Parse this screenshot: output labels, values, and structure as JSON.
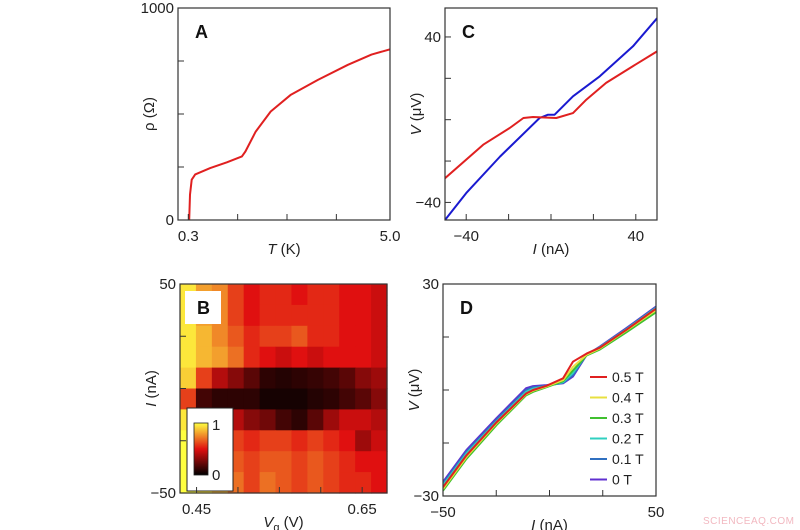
{
  "watermark": "SCIENCEAQ.COM",
  "chart_data": [
    {
      "panel": "A",
      "type": "line",
      "xlabel": {
        "var": "T",
        "unit": " (K)"
      },
      "ylabel": {
        "var": "ρ",
        "unit": " (Ω)"
      },
      "xlim": [
        0.06,
        5.0
      ],
      "ylim": [
        0,
        1000
      ],
      "xtick_labels": [
        {
          "v": 0.3,
          "t": "0.3"
        },
        {
          "v": 5.0,
          "t": "5.0"
        }
      ],
      "xticks_minor": [
        1.45,
        2.6,
        3.75
      ],
      "ytick_labels": [
        {
          "v": 0,
          "t": "0"
        },
        {
          "v": 1000,
          "t": "1000"
        }
      ],
      "yticks_minor": [
        250,
        500,
        750
      ],
      "series": [
        {
          "color": "#e02020",
          "x": [
            0.32,
            0.34,
            0.38,
            0.46,
            0.81,
            1.2,
            1.55,
            1.63,
            1.87,
            2.22,
            2.69,
            3.32,
            4.02,
            4.57,
            5.0
          ],
          "y": [
            0,
            120,
            190,
            215,
            245,
            272,
            300,
            323,
            417,
            512,
            591,
            661,
            732,
            780,
            805
          ]
        }
      ]
    },
    {
      "panel": "C",
      "type": "line",
      "xlabel": {
        "var": "I",
        "unit": " (nA)"
      },
      "ylabel": {
        "var": "V",
        "unit": " (μV)"
      },
      "xlim": [
        -50,
        50
      ],
      "ylim": [
        -48.5,
        54
      ],
      "xtick_labels": [
        {
          "v": -40,
          "t": "−40"
        },
        {
          "v": 40,
          "t": "40"
        }
      ],
      "xticks_minor": [
        -20,
        0,
        20
      ],
      "ytick_labels": [
        {
          "v": 40,
          "t": "40"
        },
        {
          "v": -40,
          "t": "−40"
        }
      ],
      "yticks_minor": [
        -20,
        0,
        20
      ],
      "series": [
        {
          "color": "#e02020",
          "x": [
            -50,
            -32,
            -19.5,
            -13,
            -8.5,
            2.5,
            10.4,
            16.7,
            26,
            38.7,
            50
          ],
          "y": [
            -28.3,
            -12.1,
            -4,
            0.8,
            1.3,
            0.8,
            3.2,
            9.7,
            17.8,
            25.9,
            33
          ]
        },
        {
          "color": "#1a1ad0",
          "x": [
            -50,
            -40,
            -24,
            -5.4,
            -1.4,
            1.7,
            10.4,
            23,
            38.7,
            50
          ],
          "y": [
            -48.5,
            -35.5,
            -17.8,
            0.8,
            2.4,
            2.4,
            11.3,
            21,
            35.5,
            49
          ]
        }
      ]
    },
    {
      "panel": "B",
      "type": "heatmap",
      "xlabel": {
        "var": "V",
        "sub": "g",
        "unit": " (V)"
      },
      "ylabel": {
        "var": "I",
        "unit": " (nA)"
      },
      "xlim": [
        0.43,
        0.68
      ],
      "ylim": [
        -50,
        50
      ],
      "xtick_labels": [
        {
          "v": 0.45,
          "t": "0.45"
        },
        {
          "v": 0.65,
          "t": "0.65"
        }
      ],
      "xticks_minor": [
        0.5,
        0.55,
        0.6
      ],
      "ytick_labels": [
        {
          "v": 50,
          "t": "50"
        },
        {
          "v": -50,
          "t": "−50"
        }
      ],
      "yticks_minor": [
        -25,
        0,
        25
      ],
      "x": [
        0.43,
        0.45,
        0.47,
        0.49,
        0.51,
        0.53,
        0.55,
        0.57,
        0.59,
        0.61,
        0.63,
        0.65,
        0.67
      ],
      "y": [
        45,
        35,
        25,
        15,
        5,
        -5,
        -15,
        -25,
        -35,
        -45
      ],
      "z": [
        [
          0.95,
          0.8,
          0.75,
          0.6,
          0.5,
          0.55,
          0.55,
          0.5,
          0.55,
          0.55,
          0.5,
          0.5,
          0.45
        ],
        [
          0.95,
          0.8,
          0.75,
          0.6,
          0.5,
          0.55,
          0.55,
          0.55,
          0.55,
          0.55,
          0.5,
          0.5,
          0.45
        ],
        [
          0.95,
          0.85,
          0.75,
          0.65,
          0.55,
          0.6,
          0.6,
          0.65,
          0.55,
          0.55,
          0.5,
          0.5,
          0.45
        ],
        [
          0.95,
          0.85,
          0.8,
          0.7,
          0.55,
          0.5,
          0.45,
          0.5,
          0.45,
          0.5,
          0.5,
          0.5,
          0.45
        ],
        [
          0.9,
          0.6,
          0.4,
          0.3,
          0.2,
          0.1,
          0.08,
          0.1,
          0.12,
          0.15,
          0.2,
          0.3,
          0.35
        ],
        [
          0.6,
          0.15,
          0.1,
          0.1,
          0.1,
          0.05,
          0.05,
          0.05,
          0.08,
          0.1,
          0.15,
          0.2,
          0.3
        ],
        [
          0.95,
          0.7,
          0.5,
          0.4,
          0.3,
          0.25,
          0.15,
          0.1,
          0.2,
          0.35,
          0.45,
          0.45,
          0.4
        ],
        [
          1,
          0.9,
          0.75,
          0.6,
          0.55,
          0.6,
          0.6,
          0.55,
          0.6,
          0.55,
          0.5,
          0.35,
          0.45
        ],
        [
          1,
          0.9,
          0.8,
          0.65,
          0.6,
          0.65,
          0.65,
          0.6,
          0.65,
          0.6,
          0.55,
          0.5,
          0.5
        ],
        [
          1,
          0.95,
          0.85,
          0.7,
          0.6,
          0.7,
          0.65,
          0.6,
          0.65,
          0.6,
          0.55,
          0.55,
          0.5
        ]
      ],
      "colorbar": {
        "min_label": "0",
        "max_label": "1",
        "colors": [
          "#000000",
          "#e01010",
          "#ffff40"
        ]
      }
    },
    {
      "panel": "D",
      "type": "line",
      "xlabel": {
        "var": "I",
        "unit": " (nA)"
      },
      "ylabel": {
        "var": "V",
        "unit": " (μV)"
      },
      "xlim": [
        -50,
        50
      ],
      "ylim": [
        -30,
        30
      ],
      "xtick_labels": [
        {
          "v": -50,
          "t": "−50"
        },
        {
          "v": 50,
          "t": "50"
        }
      ],
      "xticks_minor": [
        -25,
        0,
        25
      ],
      "ytick_labels": [
        {
          "v": 30,
          "t": "30"
        },
        {
          "v": -30,
          "t": "−30"
        }
      ],
      "yticks_minor": [
        -15,
        0,
        15
      ],
      "legend_position": "right",
      "x": [
        -50,
        -39,
        -25,
        -11,
        -7.7,
        -1.4,
        6.4,
        11,
        17.4,
        23.7,
        36,
        50
      ],
      "series": [
        {
          "name": "0.5 T",
          "color": "#e02020",
          "y": [
            -27.5,
            -18.5,
            -9.2,
            -1,
            0,
            1.2,
            3.3,
            8.0,
            10.3,
            12.0,
            17.0,
            23.0
          ]
        },
        {
          "name": "0.4 T",
          "color": "#e8e040",
          "y": [
            -28,
            -19,
            -9.5,
            -1.2,
            -0.2,
            1.0,
            2.8,
            6.5,
            10.0,
            11.8,
            16.8,
            22.6
          ]
        },
        {
          "name": "0.3 T",
          "color": "#40c030",
          "y": [
            -28.5,
            -19.5,
            -10,
            -1.5,
            -0.5,
            0.8,
            2.5,
            5.5,
            9.8,
            11.5,
            16.3,
            22.0
          ]
        },
        {
          "name": "0.2 T",
          "color": "#30d0c0",
          "y": [
            -27,
            -18,
            -9,
            -0.5,
            0.4,
            1.1,
            2.2,
            4.8,
            10.1,
            12.1,
            17.1,
            23.2
          ]
        },
        {
          "name": "0.1 T",
          "color": "#3070c0",
          "y": [
            -26.5,
            -17.5,
            -8.5,
            0,
            0.8,
            1.2,
            2.0,
            4.2,
            10.0,
            12.2,
            17.3,
            23.4
          ]
        },
        {
          "name": "0 T",
          "color": "#6030d0",
          "y": [
            -26,
            -17,
            -8,
            0.5,
            1.1,
            1.4,
            1.9,
            3.8,
            9.9,
            12.3,
            17.5,
            23.6
          ]
        }
      ]
    }
  ]
}
